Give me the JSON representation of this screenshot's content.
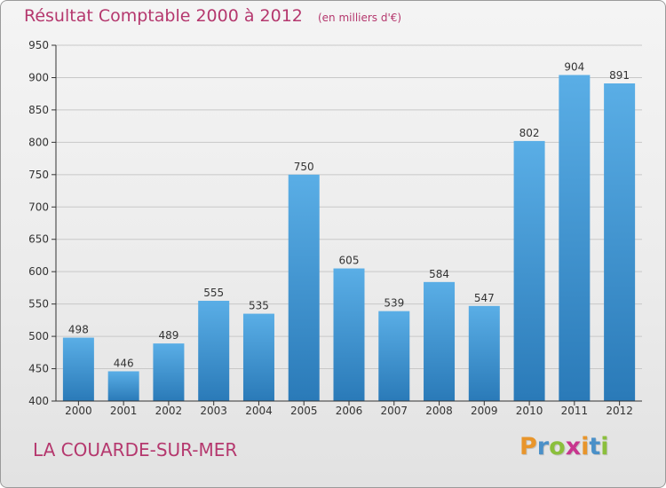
{
  "chart_data": {
    "type": "bar",
    "title": "Résultat Comptable 2000 à 2012",
    "subtitle": "(en milliers d'€)",
    "categories": [
      "2000",
      "2001",
      "2002",
      "2003",
      "2004",
      "2005",
      "2006",
      "2007",
      "2008",
      "2009",
      "2010",
      "2011",
      "2012"
    ],
    "values": [
      498,
      446,
      489,
      555,
      535,
      750,
      605,
      539,
      584,
      547,
      802,
      904,
      891
    ],
    "ylim": [
      400,
      950
    ],
    "yticks": [
      400,
      450,
      500,
      550,
      600,
      650,
      700,
      750,
      800,
      850,
      900,
      950
    ],
    "grid": true,
    "bar_color_top": "#5aaee6",
    "bar_color_bottom": "#2a7ab8"
  },
  "footer": {
    "commune": "LA COUARDE-SUR-MER",
    "logo_letters": [
      "P",
      "r",
      "o",
      "x",
      "i",
      "t",
      "i"
    ],
    "logo_colors": [
      "#e8952b",
      "#4a90c8",
      "#8bbf3c",
      "#c8368e",
      "#e8952b",
      "#4a90c8",
      "#8bbf3c"
    ]
  },
  "colors": {
    "title": "#b5386e",
    "axis": "#333333",
    "grid": "#c8c8c8"
  }
}
